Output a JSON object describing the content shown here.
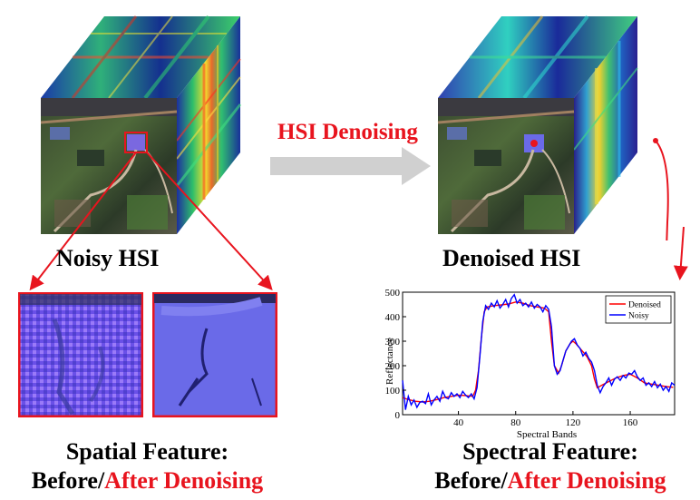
{
  "process_label": "HSI Denoising",
  "noisy_label": "Noisy HSI",
  "denoised_label": "Denoised HSI",
  "spatial_caption": {
    "line1": "Spatial Feature:",
    "before": "Before/",
    "after": "After Denoising"
  },
  "spectral_caption": {
    "line1": "Spectral Feature:",
    "before": "Before/",
    "after": "After Denoising"
  },
  "colors": {
    "accent_red": "#e8141e",
    "arrow_gray": "#d0d0d0",
    "denoised_line": "#ff0000",
    "noisy_line": "#0000ff"
  },
  "chart_data": {
    "type": "line",
    "xlabel": "Spectral Bands",
    "ylabel": "Reflectance",
    "xlim": [
      1,
      191
    ],
    "ylim": [
      0,
      500
    ],
    "xticks": [
      40,
      80,
      120,
      160
    ],
    "yticks": [
      0,
      100,
      200,
      300,
      400,
      500
    ],
    "legend_position": "top-right",
    "series": [
      {
        "name": "Denoised",
        "color": "#ff0000",
        "x": [
          1,
          5,
          10,
          15,
          20,
          25,
          30,
          35,
          40,
          45,
          50,
          52,
          54,
          56,
          58,
          60,
          65,
          70,
          75,
          80,
          85,
          90,
          95,
          100,
          103,
          105,
          107,
          110,
          112,
          115,
          118,
          120,
          122,
          125,
          128,
          130,
          133,
          135,
          137,
          140,
          145,
          150,
          155,
          160,
          165,
          170,
          175,
          180,
          185,
          190
        ],
        "y": [
          70,
          62,
          55,
          52,
          55,
          62,
          70,
          75,
          80,
          78,
          75,
          100,
          180,
          310,
          420,
          440,
          445,
          448,
          452,
          460,
          455,
          445,
          440,
          435,
          420,
          300,
          200,
          170,
          200,
          260,
          290,
          300,
          290,
          270,
          250,
          235,
          200,
          145,
          110,
          120,
          135,
          150,
          160,
          165,
          150,
          130,
          125,
          120,
          115,
          112
        ]
      },
      {
        "name": "Noisy",
        "color": "#0000ff",
        "x": [
          1,
          3,
          5,
          7,
          9,
          11,
          13,
          15,
          17,
          19,
          21,
          23,
          25,
          27,
          29,
          31,
          33,
          35,
          37,
          39,
          41,
          43,
          45,
          47,
          49,
          51,
          53,
          55,
          57,
          59,
          61,
          63,
          65,
          67,
          69,
          71,
          73,
          75,
          77,
          79,
          81,
          83,
          85,
          87,
          89,
          91,
          93,
          95,
          97,
          99,
          101,
          103,
          105,
          107,
          109,
          111,
          113,
          115,
          117,
          119,
          121,
          123,
          125,
          127,
          129,
          131,
          133,
          135,
          137,
          139,
          141,
          143,
          145,
          147,
          149,
          151,
          153,
          155,
          157,
          159,
          161,
          163,
          165,
          167,
          169,
          171,
          173,
          175,
          177,
          179,
          181,
          183,
          185,
          187,
          189,
          191
        ],
        "y": [
          140,
          20,
          75,
          40,
          60,
          30,
          50,
          55,
          45,
          85,
          40,
          60,
          75,
          55,
          95,
          70,
          65,
          90,
          75,
          85,
          70,
          95,
          80,
          70,
          85,
          65,
          110,
          240,
          380,
          445,
          430,
          455,
          440,
          465,
          435,
          450,
          470,
          440,
          475,
          490,
          455,
          470,
          445,
          455,
          440,
          460,
          435,
          450,
          440,
          420,
          445,
          430,
          360,
          200,
          165,
          180,
          220,
          260,
          280,
          300,
          310,
          285,
          270,
          240,
          255,
          230,
          215,
          180,
          120,
          90,
          115,
          130,
          150,
          120,
          145,
          155,
          140,
          160,
          150,
          170,
          165,
          180,
          155,
          140,
          150,
          120,
          130,
          115,
          135,
          110,
          125,
          100,
          115,
          95,
          130,
          120
        ]
      }
    ]
  }
}
